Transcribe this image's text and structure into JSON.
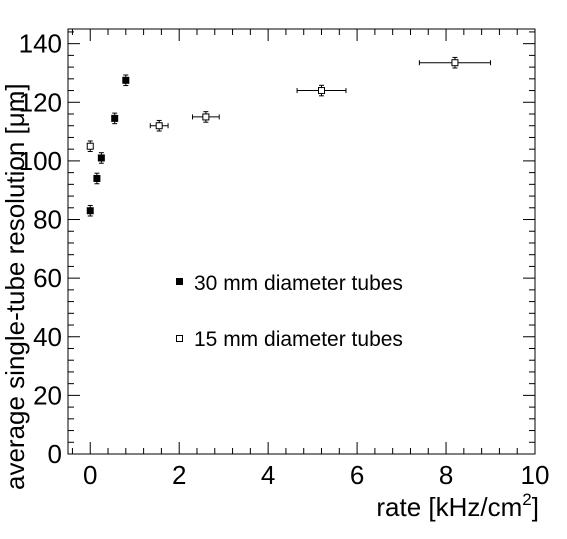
{
  "chart_data": {
    "type": "scatter",
    "title": "",
    "xlabel": "rate [kHz/cm",
    "xlabel_sup": "2",
    "xlabel_close": "]",
    "ylabel": "average single-tube resolution [μm]",
    "xlim": [
      -0.5,
      10
    ],
    "ylim": [
      0,
      145
    ],
    "xticks": [
      {
        "value": 0,
        "label": "0"
      },
      {
        "value": 2,
        "label": "2"
      },
      {
        "value": 4,
        "label": "4"
      },
      {
        "value": 6,
        "label": "6"
      },
      {
        "value": 8,
        "label": "8"
      },
      {
        "value": 10,
        "label": "10"
      }
    ],
    "yticks": [
      {
        "value": 0,
        "label": "0"
      },
      {
        "value": 20,
        "label": "20"
      },
      {
        "value": 40,
        "label": "40"
      },
      {
        "value": 60,
        "label": "60"
      },
      {
        "value": 80,
        "label": "80"
      },
      {
        "value": 100,
        "label": "100"
      },
      {
        "value": 120,
        "label": "120"
      },
      {
        "value": 140,
        "label": "140"
      }
    ],
    "grid": false,
    "legend_position": "center",
    "series": [
      {
        "name": "30 mm diameter tubes",
        "marker": "filled-square",
        "color": "#000000",
        "points": [
          {
            "x": 0.0,
            "y": 83.0,
            "yerr": 1.8,
            "xerr": 0.0
          },
          {
            "x": 0.15,
            "y": 94.0,
            "yerr": 1.8,
            "xerr": 0.0
          },
          {
            "x": 0.25,
            "y": 101.0,
            "yerr": 1.8,
            "xerr": 0.0
          },
          {
            "x": 0.55,
            "y": 114.5,
            "yerr": 1.8,
            "xerr": 0.0
          },
          {
            "x": 0.8,
            "y": 127.5,
            "yerr": 1.8,
            "xerr": 0.0
          }
        ]
      },
      {
        "name": "15 mm diameter tubes",
        "marker": "open-square",
        "color": "#000000",
        "points": [
          {
            "x": 0.0,
            "y": 105.0,
            "yerr": 1.8,
            "xerr": 0.0
          },
          {
            "x": 1.55,
            "y": 112.0,
            "yerr": 1.8,
            "xerr": 0.2
          },
          {
            "x": 2.6,
            "y": 115.0,
            "yerr": 1.8,
            "xerr": 0.3
          },
          {
            "x": 5.2,
            "y": 124.0,
            "yerr": 1.8,
            "xerr": 0.55
          },
          {
            "x": 8.2,
            "y": 133.5,
            "yerr": 1.8,
            "xerr": 0.8
          }
        ]
      }
    ]
  }
}
